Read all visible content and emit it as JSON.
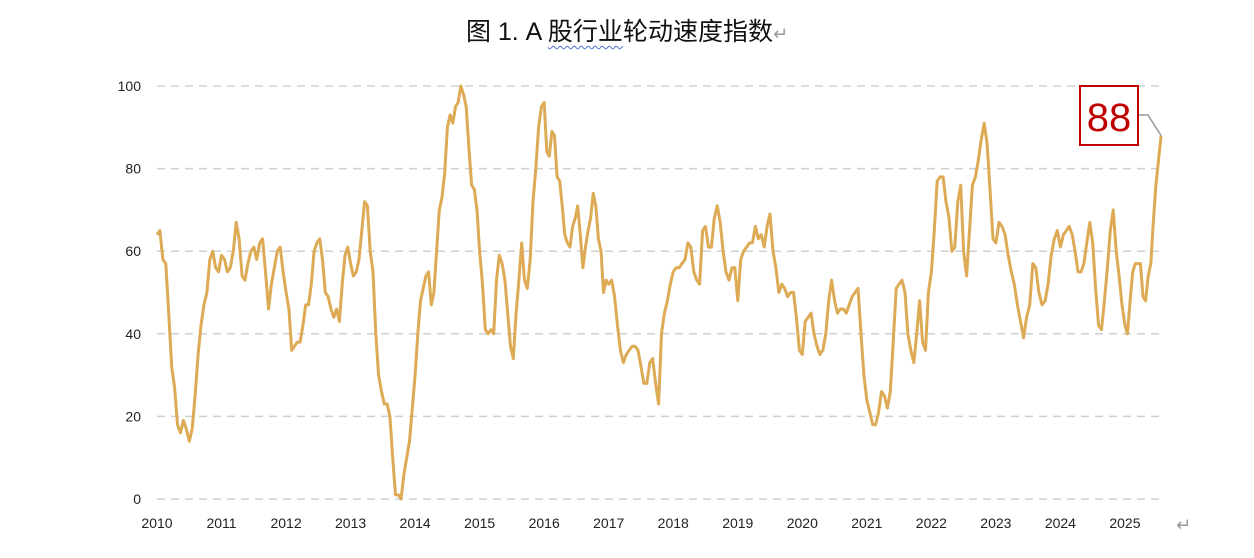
{
  "chart_data": {
    "type": "line",
    "title_prefix": "图 1. A ",
    "title_underlined": "股行业",
    "title_suffix": "轮动速度指数",
    "return_mark": "↵",
    "xlabel": "",
    "ylabel": "",
    "ylim": [
      0,
      100
    ],
    "yticks": [
      "0",
      "20",
      "40",
      "60",
      "80",
      "100"
    ],
    "xticks": [
      "2010",
      "2011",
      "2012",
      "2013",
      "2014",
      "2015",
      "2016",
      "2017",
      "2018",
      "2019",
      "2020",
      "2021",
      "2022",
      "2023",
      "2024",
      "2025"
    ],
    "xlim": [
      2010,
      2025.56
    ],
    "grid": true,
    "line_color": "#DDAA55",
    "callout": {
      "value": "88",
      "color": "#C00000"
    },
    "series": [
      {
        "name": "A股行业轮动速度指数",
        "by_year": [
          {
            "year": 2010,
            "values": [
              64,
              65,
              58,
              57,
              45,
              32,
              27,
              18,
              16,
              19,
              17,
              14,
              17,
              25,
              35,
              42,
              47,
              50,
              58,
              60,
              56,
              55
            ]
          },
          {
            "year": 2011,
            "values": [
              59,
              58,
              55,
              56,
              60,
              67,
              63,
              54,
              53,
              57,
              60,
              61,
              58,
              62,
              63,
              55,
              46,
              52,
              56,
              60,
              61,
              55
            ]
          },
          {
            "year": 2012,
            "values": [
              50,
              46,
              36,
              37,
              38,
              38,
              42,
              47,
              47,
              52,
              60,
              62,
              63,
              58,
              50,
              49,
              46,
              44,
              46,
              43,
              52,
              59,
              61
            ]
          },
          {
            "year": 2013,
            "values": [
              57,
              54,
              55,
              58,
              65,
              72,
              71,
              60,
              55,
              40,
              30,
              26,
              23,
              23,
              20,
              10,
              1,
              1,
              0,
              6,
              10,
              14,
              22
            ]
          },
          {
            "year": 2014,
            "values": [
              30,
              40,
              48,
              51,
              54,
              55,
              47,
              50,
              60,
              70,
              73,
              79,
              90,
              93,
              91,
              95,
              96,
              100,
              98,
              95,
              85,
              76,
              75,
              70
            ]
          },
          {
            "year": 2015,
            "values": [
              60,
              52,
              41,
              40,
              41,
              40,
              53,
              59,
              57,
              53,
              45,
              37,
              34,
              45,
              53,
              62,
              53,
              51,
              58,
              72,
              80,
              90,
              95
            ]
          },
          {
            "year": 2016,
            "values": [
              96,
              84,
              83,
              89,
              88,
              78,
              77,
              71,
              64,
              62,
              61,
              66,
              68,
              71,
              64,
              56,
              61,
              65,
              68,
              74,
              71,
              63,
              60,
              50,
              53
            ]
          },
          {
            "year": 2017,
            "values": [
              52,
              53,
              49,
              42,
              36,
              33,
              35,
              36,
              37,
              37,
              36,
              32,
              28,
              28,
              33,
              34,
              28,
              23,
              40,
              45,
              48,
              52
            ]
          },
          {
            "year": 2018,
            "values": [
              55,
              56,
              56,
              57,
              58,
              62,
              61,
              55,
              53,
              52,
              65,
              66,
              61,
              61,
              68,
              71,
              67,
              60,
              55,
              53,
              56,
              56
            ]
          },
          {
            "year": 2019,
            "values": [
              48,
              58,
              60,
              61,
              62,
              62,
              66,
              63,
              64,
              61,
              66,
              69,
              60,
              56,
              50,
              52,
              51,
              49,
              50,
              50,
              44,
              36
            ]
          },
          {
            "year": 2020,
            "values": [
              35,
              43,
              44,
              45,
              40,
              37,
              35,
              36,
              40,
              48,
              53,
              48,
              45,
              46,
              46,
              45,
              47,
              49,
              50,
              51,
              40,
              30
            ]
          },
          {
            "year": 2021,
            "values": [
              24,
              21,
              18,
              18,
              21,
              26,
              25,
              22,
              26,
              38,
              51,
              52,
              53,
              50,
              40,
              36,
              33,
              40,
              48,
              38,
              36,
              50
            ]
          },
          {
            "year": 2022,
            "values": [
              55,
              65,
              77,
              78,
              78,
              72,
              68,
              60,
              61,
              72,
              76,
              60,
              54,
              65,
              76,
              78,
              82,
              87,
              91,
              86,
              75,
              63
            ]
          },
          {
            "year": 2023,
            "values": [
              62,
              67,
              66,
              64,
              59,
              55,
              52,
              47,
              43,
              39,
              44,
              47,
              57,
              56,
              50,
              47,
              48,
              52,
              59,
              63,
              65
            ]
          },
          {
            "year": 2024,
            "values": [
              61,
              64,
              65,
              66,
              64,
              60,
              55,
              55,
              57,
              62,
              67,
              62,
              51,
              42,
              41,
              48,
              56,
              65,
              70,
              60,
              54,
              47
            ]
          },
          {
            "year": 2025,
            "span": 0.56,
            "values": [
              42,
              40,
              48,
              55,
              57,
              57,
              57,
              49,
              48,
              54,
              57,
              67,
              76,
              82,
              88
            ]
          }
        ]
      }
    ]
  }
}
